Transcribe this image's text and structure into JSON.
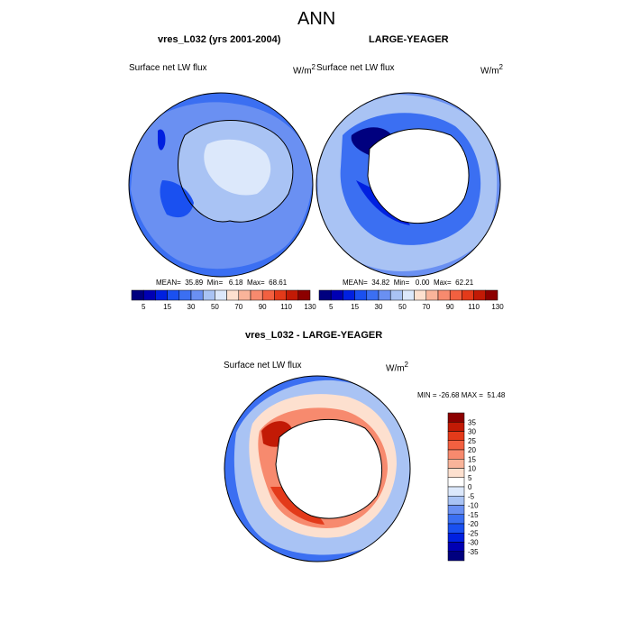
{
  "figure": {
    "title": "ANN"
  },
  "panels": [
    {
      "id": "left",
      "title": "vres_L032 (yrs 2001-2004)",
      "left_label": "Surface net LW flux",
      "units_base": "W/m",
      "units_exp": "2",
      "stats": "MEAN=  35.89  Min=   6.18  Max=  68.61"
    },
    {
      "id": "right",
      "title": "LARGE-YEAGER",
      "left_label": "Surface net LW flux",
      "units_base": "W/m",
      "units_exp": "2",
      "stats": "MEAN=  34.82  Min=   0.00  Max=  62.21"
    },
    {
      "id": "diff",
      "title": "vres_L032 - LARGE-YEAGER",
      "left_label": "Surface net LW flux",
      "units_base": "W/m",
      "units_exp": "2",
      "stats": "MIN = -26.68 MAX =  51.48"
    }
  ],
  "colors": {
    "abs_scale": [
      "#00007f",
      "#0000b3",
      "#0020e0",
      "#1a50f0",
      "#3b6ff2",
      "#6a90f2",
      "#a9c3f4",
      "#dce8fb",
      "#fde0cf",
      "#f9b49a",
      "#f78a6e",
      "#f26040",
      "#e33a1a",
      "#c21a05",
      "#8c0000"
    ],
    "diff_scale": [
      "#00007f",
      "#0000b3",
      "#0020e0",
      "#1a50f0",
      "#3b6ff2",
      "#6a90f2",
      "#a9c3f4",
      "#dce8fb",
      "#ffffff",
      "#fde0cf",
      "#f9b49a",
      "#f78a6e",
      "#f26040",
      "#e33a1a",
      "#c21a05",
      "#8c0000"
    ],
    "land": "#ffffff",
    "coast": "#000000"
  },
  "chart_data": [
    {
      "type": "heatmap",
      "projection": "polar stereographic (south pole)",
      "title": "vres_L032 (yrs 2001-2004)",
      "field": "Surface net LW flux",
      "units": "W/m2",
      "mean": 35.89,
      "min": 6.18,
      "max": 68.61,
      "colorbar_levels": [
        5,
        10,
        15,
        20,
        30,
        40,
        50,
        60,
        70,
        80,
        90,
        100,
        110,
        120,
        130
      ],
      "colorbar_tick_labels": [
        "5",
        "15",
        "30",
        "50",
        "70",
        "90",
        "110",
        "130"
      ]
    },
    {
      "type": "heatmap",
      "projection": "polar stereographic (south pole)",
      "title": "LARGE-YEAGER",
      "field": "Surface net LW flux",
      "units": "W/m2",
      "mean": 34.82,
      "min": 0.0,
      "max": 62.21,
      "colorbar_levels": [
        5,
        10,
        15,
        20,
        30,
        40,
        50,
        60,
        70,
        80,
        90,
        100,
        110,
        120,
        130
      ],
      "colorbar_tick_labels": [
        "5",
        "15",
        "30",
        "50",
        "70",
        "90",
        "110",
        "130"
      ]
    },
    {
      "type": "heatmap",
      "projection": "polar stereographic (south pole)",
      "title": "vres_L032 - LARGE-YEAGER",
      "field": "Surface net LW flux",
      "units": "W/m2",
      "min": -26.68,
      "max": 51.48,
      "colorbar_levels": [
        -35,
        -30,
        -25,
        -20,
        -15,
        -10,
        -5,
        0,
        5,
        10,
        15,
        20,
        25,
        30,
        35
      ],
      "colorbar_tick_labels": [
        "35",
        "30",
        "25",
        "20",
        "15",
        "10",
        "5",
        "0",
        "-5",
        "-10",
        "-15",
        "-20",
        "-25",
        "-30",
        "-35"
      ]
    }
  ]
}
